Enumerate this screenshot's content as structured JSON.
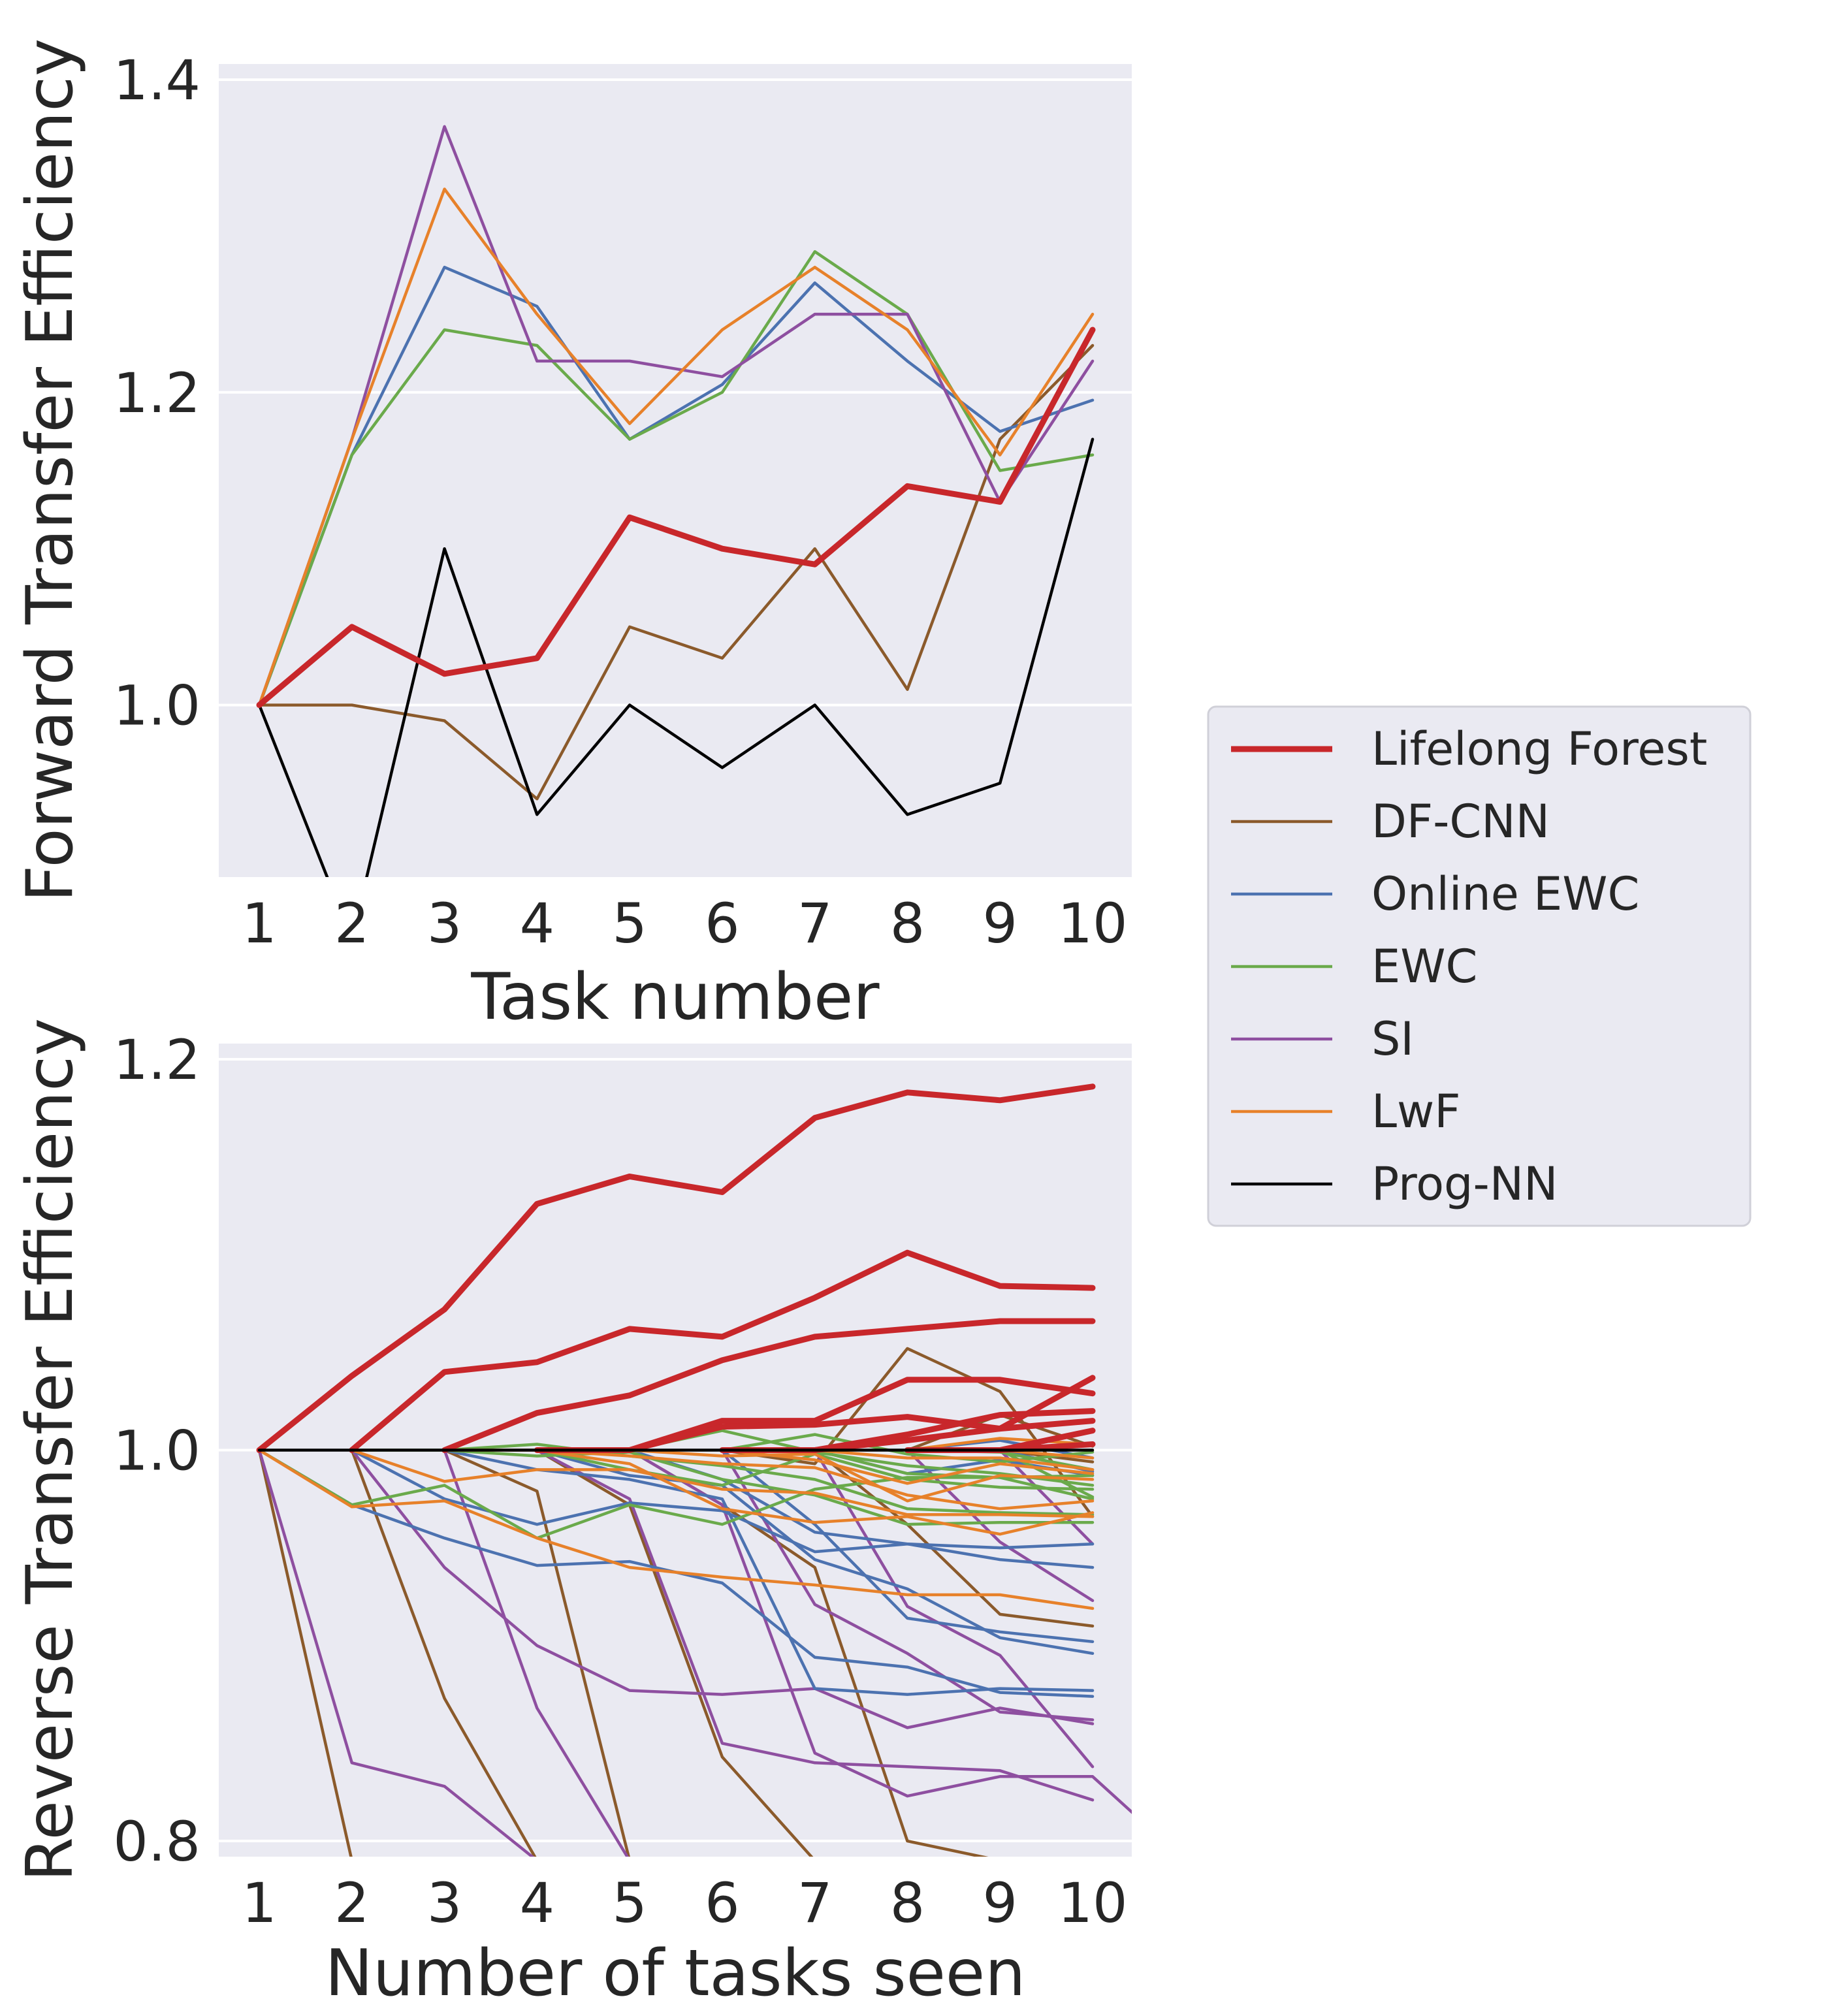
{
  "chart_data": [
    {
      "type": "line",
      "xlabel": "Task number",
      "ylabel": "Forward Transfer Efficiency",
      "x": [
        1,
        2,
        3,
        4,
        5,
        6,
        7,
        8,
        9,
        10
      ],
      "xticks": [
        "1",
        "2",
        "3",
        "4",
        "5",
        "6",
        "7",
        "8",
        "9",
        "10"
      ],
      "yticks": [
        "1.0",
        "1.2",
        "1.4"
      ],
      "ylim": [
        0.89,
        1.41
      ],
      "grid": true,
      "series": [
        {
          "name": "Lifelong Forest",
          "values": [
            1.0,
            1.05,
            1.02,
            1.03,
            1.12,
            1.1,
            1.09,
            1.14,
            1.13,
            1.24
          ]
        },
        {
          "name": "DF-CNN",
          "values": [
            1.0,
            1.0,
            0.99,
            0.94,
            1.05,
            1.03,
            1.1,
            1.01,
            1.17,
            1.23
          ]
        },
        {
          "name": "Online EWC",
          "values": [
            1.0,
            1.16,
            1.28,
            1.255,
            1.17,
            1.205,
            1.27,
            1.22,
            1.175,
            1.195
          ]
        },
        {
          "name": "EWC",
          "values": [
            1.0,
            1.16,
            1.24,
            1.23,
            1.17,
            1.2,
            1.29,
            1.25,
            1.15,
            1.16
          ]
        },
        {
          "name": "SI",
          "values": [
            1.0,
            1.17,
            1.37,
            1.22,
            1.22,
            1.21,
            1.25,
            1.25,
            1.13,
            1.22
          ]
        },
        {
          "name": "LwF",
          "values": [
            1.0,
            1.17,
            1.33,
            1.25,
            1.18,
            1.24,
            1.28,
            1.24,
            1.16,
            1.25
          ]
        },
        {
          "name": "Prog-NN",
          "values": [
            1.0,
            0.85,
            1.1,
            0.93,
            1.0,
            0.96,
            1.0,
            0.93,
            0.95,
            1.17
          ]
        }
      ]
    },
    {
      "type": "line",
      "xlabel": "Number of tasks seen",
      "ylabel": "Reverse Transfer Efficiency",
      "x": [
        1,
        2,
        3,
        4,
        5,
        6,
        7,
        8,
        9,
        10
      ],
      "xticks": [
        "1",
        "2",
        "3",
        "4",
        "5",
        "6",
        "7",
        "8",
        "9",
        "10"
      ],
      "yticks": [
        "0.8",
        "1.0",
        "1.2"
      ],
      "ylim": [
        0.792,
        1.208
      ],
      "grid": true,
      "series_groups": [
        {
          "name": "Lifelong Forest",
          "curves": [
            {
              "start": 1,
              "values": [
                1.0,
                1.038,
                1.072,
                1.126,
                1.14,
                1.132,
                1.17,
                1.183,
                1.179,
                1.186
              ]
            },
            {
              "start": 2,
              "values": [
                1.0,
                1.04,
                1.045,
                1.062,
                1.058,
                1.078,
                1.101,
                1.084,
                1.083
              ]
            },
            {
              "start": 3,
              "values": [
                1.0,
                1.019,
                1.028,
                1.046,
                1.058,
                1.062,
                1.066,
                1.066
              ]
            },
            {
              "start": 4,
              "values": [
                1.0,
                1.0,
                1.015,
                1.015,
                1.036,
                1.036,
                1.029
              ]
            },
            {
              "start": 5,
              "values": [
                1.0,
                1.012,
                1.013,
                1.017,
                1.011,
                1.037
              ]
            },
            {
              "start": 6,
              "values": [
                1.0,
                1.0,
                1.008,
                1.018,
                1.02
              ]
            },
            {
              "start": 7,
              "values": [
                1.0,
                1.005,
                1.011,
                1.015
              ]
            },
            {
              "start": 8,
              "values": [
                1.0,
                1.0,
                1.01
              ]
            },
            {
              "start": 9,
              "values": [
                1.0,
                1.003
              ]
            }
          ]
        },
        {
          "name": "DF-CNN",
          "curves": [
            {
              "start": 1,
              "values": [
                1.0,
                0.79
              ]
            },
            {
              "start": 2,
              "values": [
                1.0,
                0.873,
                0.79
              ]
            },
            {
              "start": 3,
              "values": [
                1.0,
                0.979,
                0.79
              ]
            },
            {
              "start": 4,
              "values": [
                1.0,
                0.972,
                0.843,
                0.79
              ]
            },
            {
              "start": 5,
              "values": [
                1.0,
                0.972,
                0.94,
                0.8,
                0.79
              ]
            },
            {
              "start": 6,
              "values": [
                1.0,
                0.993,
                1.052,
                1.03,
                0.966
              ]
            },
            {
              "start": 7,
              "values": [
                1.0,
                0.962,
                0.916,
                0.91
              ]
            },
            {
              "start": 8,
              "values": [
                1.0,
                1.018,
                1.002
              ]
            },
            {
              "start": 9,
              "values": [
                1.0,
                0.994
              ]
            }
          ]
        },
        {
          "name": "Online EWC",
          "curves": [
            {
              "start": 1,
              "values": [
                1.0,
                0.972,
                0.955,
                0.941,
                0.943,
                0.932,
                0.894,
                0.889,
                0.876,
                0.874
              ]
            },
            {
              "start": 2,
              "values": [
                1.0,
                0.975,
                0.962,
                0.973,
                0.969,
                0.948,
                0.952,
                0.95,
                0.952
              ]
            },
            {
              "start": 3,
              "values": [
                1.0,
                0.99,
                0.985,
                0.975,
                0.878,
                0.875,
                0.878,
                0.877
              ]
            },
            {
              "start": 4,
              "values": [
                1.0,
                0.987,
                0.982,
                0.944,
                0.929,
                0.904,
                0.896
              ]
            },
            {
              "start": 5,
              "values": [
                1.0,
                0.985,
                0.958,
                0.952,
                0.944,
                0.94
              ]
            },
            {
              "start": 6,
              "values": [
                1.0,
                0.962,
                0.914,
                0.907,
                0.902
              ]
            },
            {
              "start": 7,
              "values": [
                1.0,
                0.988,
                0.995,
                0.987
              ]
            },
            {
              "start": 8,
              "values": [
                1.0,
                1.005,
                0.996
              ]
            },
            {
              "start": 9,
              "values": [
                1.0,
                0.989
              ]
            }
          ]
        },
        {
          "name": "EWC",
          "curves": [
            {
              "start": 1,
              "values": [
                1.0,
                0.972,
                0.982,
                0.955,
                0.972,
                0.962,
                0.98,
                0.986,
                0.986,
                0.987
              ]
            },
            {
              "start": 2,
              "values": [
                1.0,
                1.0,
                1.003,
                0.997,
                0.992,
                0.985,
                0.97,
                0.968,
                0.967
              ]
            },
            {
              "start": 3,
              "values": [
                1.0,
                0.997,
                0.999,
                0.985,
                0.977,
                0.962,
                0.963,
                0.963
              ]
            },
            {
              "start": 4,
              "values": [
                1.0,
                0.99,
                0.982,
                0.998,
                0.985,
                0.981,
                0.98
              ]
            },
            {
              "start": 5,
              "values": [
                1.0,
                1.01,
                0.999,
                0.992,
                0.988,
                0.982
              ]
            },
            {
              "start": 6,
              "values": [
                1.0,
                1.008,
                0.998,
                0.994,
                0.999
              ]
            },
            {
              "start": 7,
              "values": [
                1.0,
                0.988,
                0.986,
                0.975
              ]
            },
            {
              "start": 8,
              "values": [
                1.0,
                0.999,
                0.99
              ]
            },
            {
              "start": 9,
              "values": [
                1.0,
                0.976
              ]
            }
          ]
        },
        {
          "name": "SI",
          "curves": [
            {
              "start": 1,
              "values": [
                1.0,
                0.84,
                0.828,
                0.79
              ]
            },
            {
              "start": 2,
              "values": [
                1.0,
                0.94,
                0.9,
                0.877,
                0.875,
                0.878,
                0.858,
                0.868,
                0.86
              ]
            },
            {
              "start": 3,
              "values": [
                1.0,
                0.868,
                0.79
              ]
            },
            {
              "start": 4,
              "values": [
                1.0,
                0.975,
                0.85,
                0.84,
                0.838,
                0.836,
                0.821
              ]
            },
            {
              "start": 5,
              "values": [
                1.0,
                0.972,
                0.845,
                0.823,
                0.833,
                0.833,
                0.79
              ]
            },
            {
              "start": 6,
              "values": [
                1.0,
                0.921,
                0.896,
                0.866,
                0.862
              ]
            },
            {
              "start": 7,
              "values": [
                1.0,
                0.92,
                0.895,
                0.838
              ]
            },
            {
              "start": 8,
              "values": [
                1.0,
                0.953,
                0.923
              ]
            },
            {
              "start": 9,
              "values": [
                1.0,
                0.952
              ]
            }
          ]
        },
        {
          "name": "LwF",
          "curves": [
            {
              "start": 1,
              "values": [
                1.0,
                0.971,
                0.974,
                0.955,
                0.94,
                0.935,
                0.931,
                0.926,
                0.926,
                0.919
              ]
            },
            {
              "start": 2,
              "values": [
                1.0,
                0.984,
                0.99,
                0.99,
                0.98,
                0.978,
                0.967,
                0.967,
                0.966
              ]
            },
            {
              "start": 3,
              "values": [
                1.0,
                1.0,
                0.997,
                0.993,
                0.991,
                0.977,
                0.97,
                0.974
              ]
            },
            {
              "start": 4,
              "values": [
                1.0,
                0.993,
                0.97,
                0.963,
                0.966,
                0.957,
                0.968
              ]
            },
            {
              "start": 5,
              "values": [
                1.0,
                0.997,
                0.998,
                0.974,
                0.987,
                0.985
              ]
            },
            {
              "start": 6,
              "values": [
                1.0,
                0.995,
                0.983,
                0.993,
                0.988
              ]
            },
            {
              "start": 7,
              "values": [
                1.0,
                0.996,
                0.996,
                0.99
              ]
            },
            {
              "start": 8,
              "values": [
                1.0,
                1.006,
                1.003
              ]
            },
            {
              "start": 9,
              "values": [
                1.0,
                0.996
              ]
            }
          ]
        },
        {
          "name": "Prog-NN",
          "curves": [
            {
              "start": 1,
              "values": [
                1.0,
                1.0,
                1.0,
                1.0,
                1.0,
                1.0,
                1.0,
                1.0,
                1.0,
                1.0
              ]
            }
          ]
        }
      ]
    }
  ],
  "legend": {
    "position": "right",
    "entries": [
      {
        "name": "Lifelong Forest",
        "color": "#c8272b",
        "width": "thick"
      },
      {
        "name": "DF-CNN",
        "color": "#8b5a2b"
      },
      {
        "name": "Online EWC",
        "color": "#4c72b0"
      },
      {
        "name": "EWC",
        "color": "#6aaa4b"
      },
      {
        "name": "SI",
        "color": "#8e4fa0"
      },
      {
        "name": "LwF",
        "color": "#e7812a"
      },
      {
        "name": "Prog-NN",
        "color": "#000000"
      }
    ]
  },
  "colors": {
    "axes_background": "#eaeaf2",
    "grid": "#ffffff",
    "text": "#262626"
  }
}
